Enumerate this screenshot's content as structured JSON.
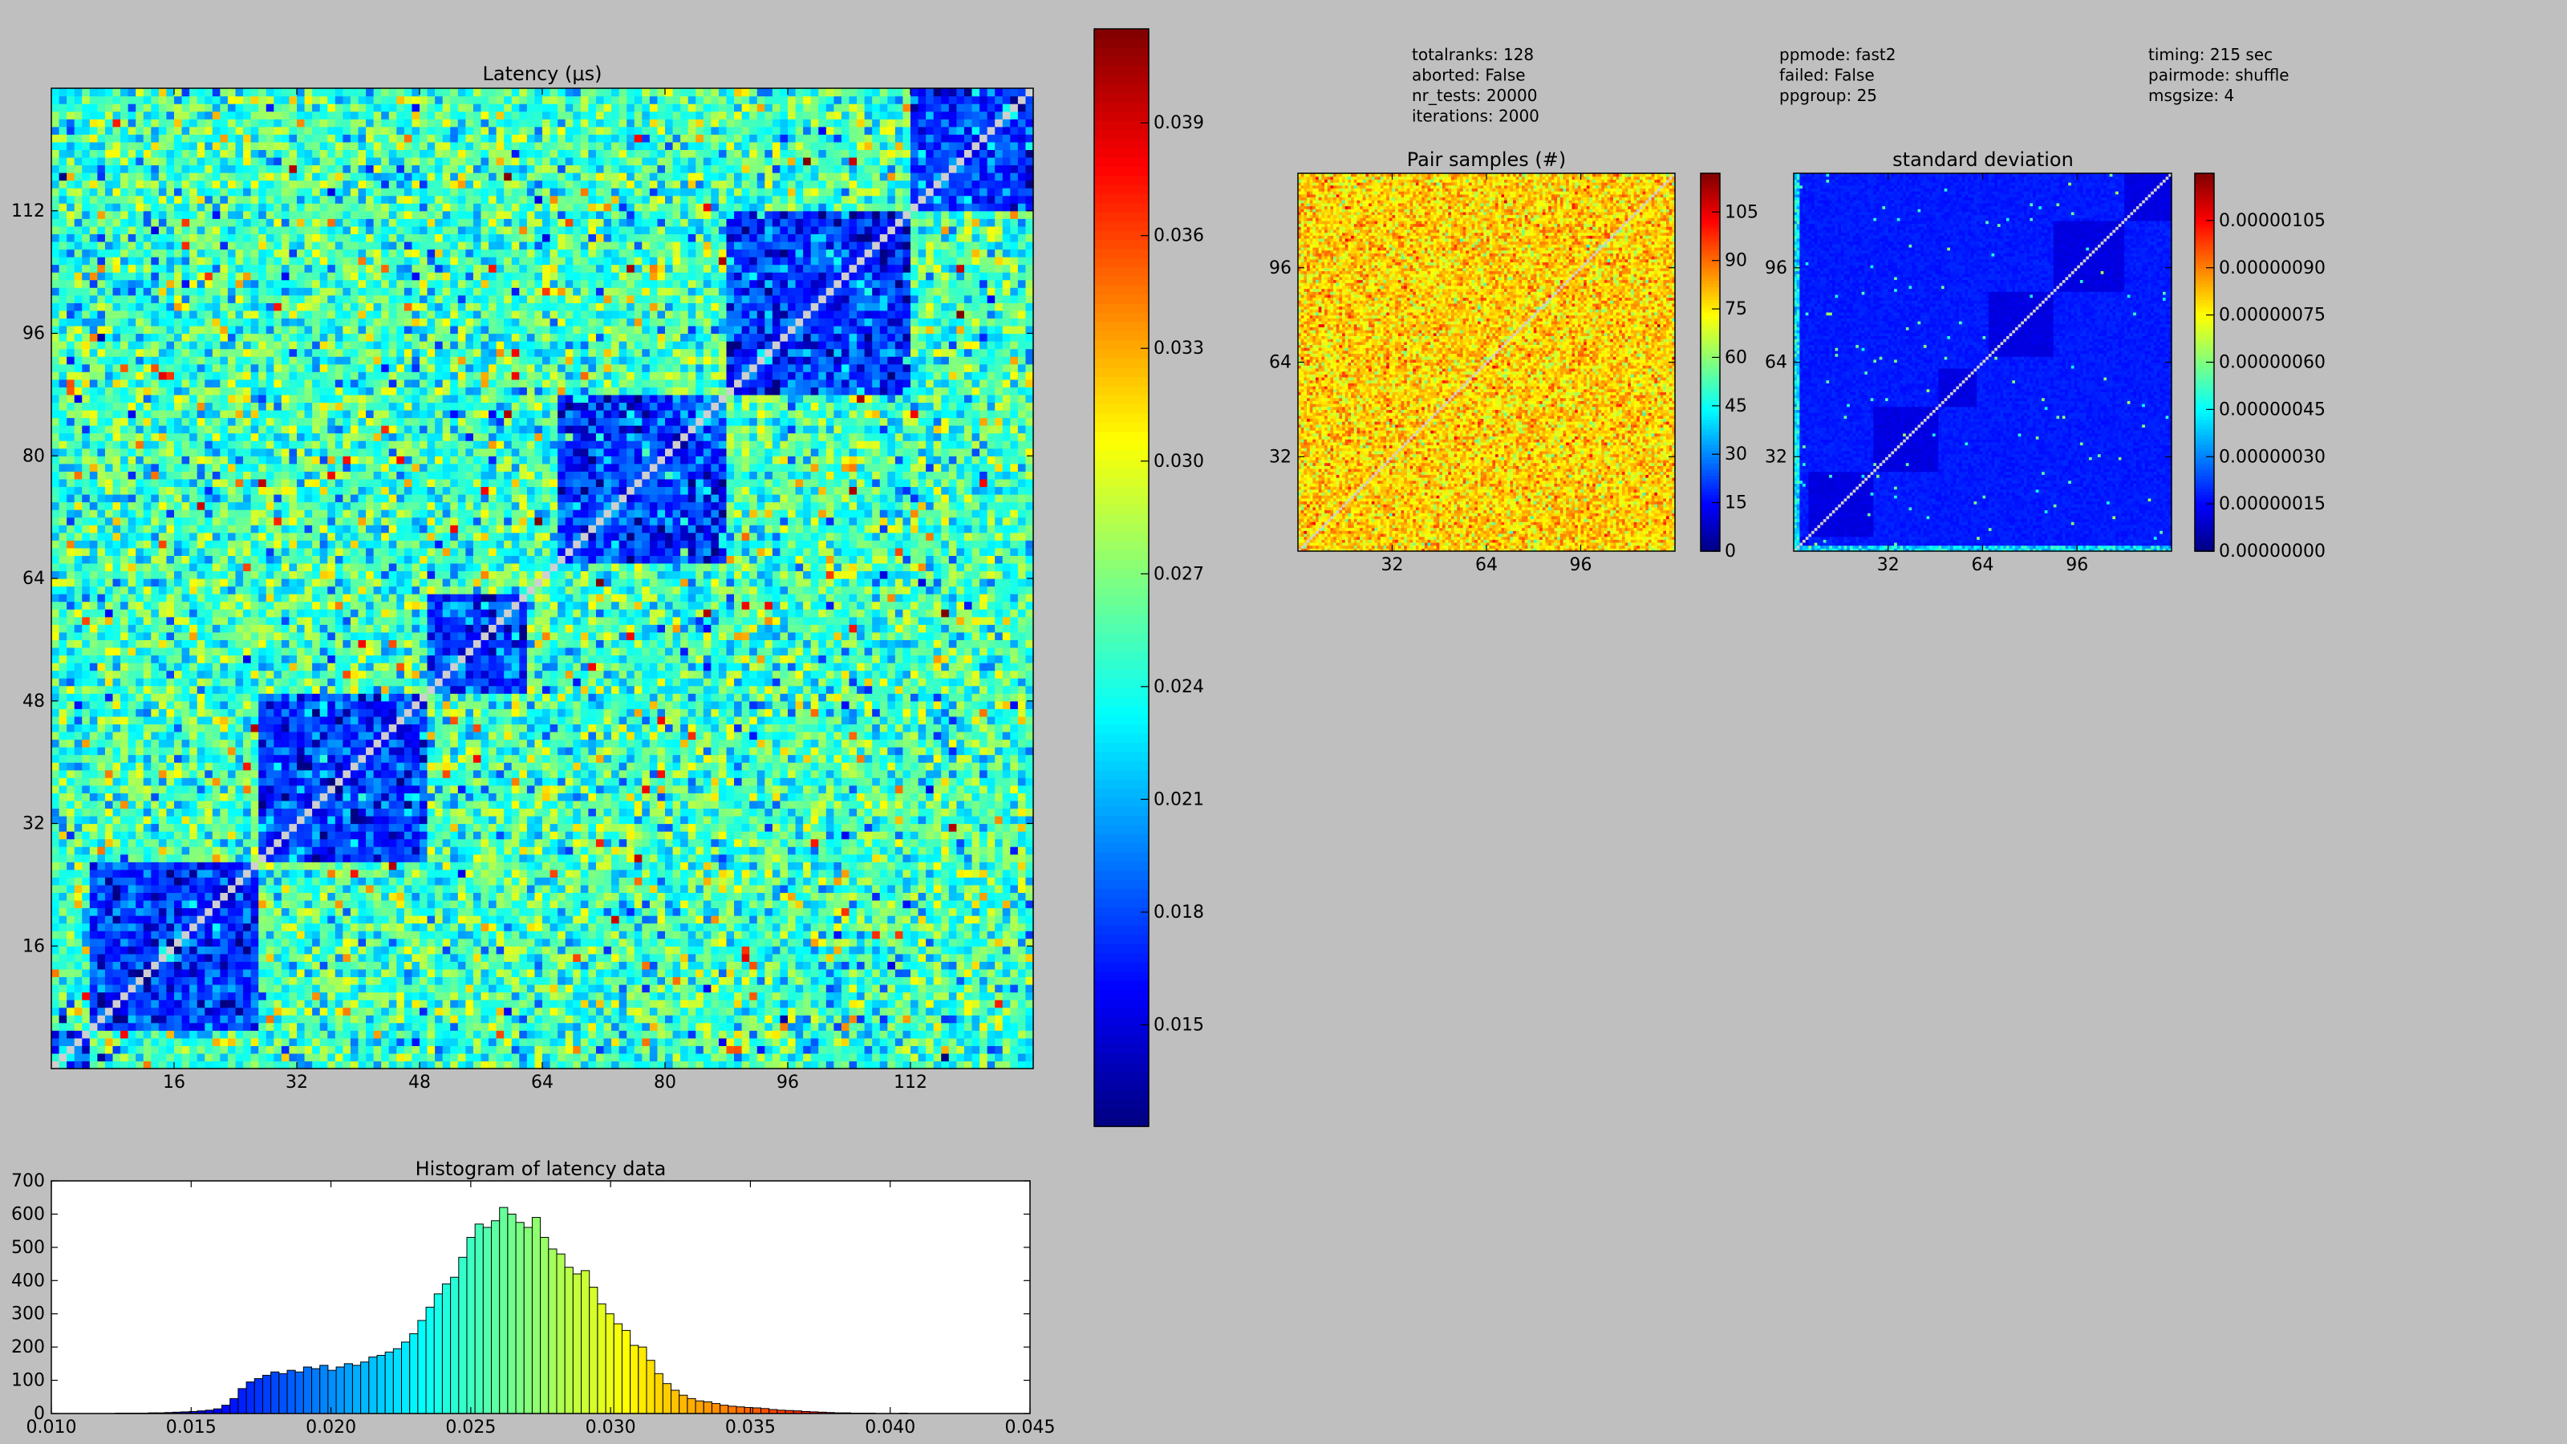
{
  "metadata": {
    "columns": [
      [
        "totalranks: 128",
        "aborted: False",
        "nr_tests: 20000",
        "iterations: 2000"
      ],
      [
        "ppmode: fast2",
        "failed: False",
        "ppgroup: 25"
      ],
      [
        "timing: 215 sec",
        "pairmode: shuffle",
        "msgsize: 4"
      ]
    ]
  },
  "colors": {
    "background": "#bfbfbf",
    "frame": "#000000",
    "diagonal": "#cfcfcf",
    "colormap": "jet",
    "histogram_background": "#ffffff"
  },
  "chart_data": [
    {
      "type": "heatmap",
      "id": "latency",
      "title": "Latency (μs)",
      "matrix_size": 128,
      "x_ticks": [
        "16",
        "32",
        "48",
        "64",
        "80",
        "96",
        "112"
      ],
      "y_ticks": [
        "16",
        "32",
        "48",
        "64",
        "80",
        "96",
        "112"
      ],
      "x_tick_values": [
        16,
        32,
        48,
        64,
        80,
        96,
        112
      ],
      "y_tick_values": [
        16,
        32,
        48,
        64,
        80,
        96,
        112
      ],
      "block_structure": [
        [
          0,
          5
        ],
        [
          5,
          27
        ],
        [
          27,
          49
        ],
        [
          49,
          62
        ],
        [
          66,
          88
        ],
        [
          88,
          112
        ],
        [
          112,
          128
        ]
      ],
      "value_in_block_mean": 0.0175,
      "value_in_block_spread": 0.0025,
      "value_off_block_mean": 0.025,
      "value_off_block_spread": 0.003,
      "colorbar": {
        "vmin": 0.0123,
        "vmax": 0.0415,
        "ticks": [
          "0.015",
          "0.018",
          "0.021",
          "0.024",
          "0.027",
          "0.030",
          "0.033",
          "0.036",
          "0.039"
        ],
        "tick_values": [
          0.015,
          0.018,
          0.021,
          0.024,
          0.027,
          0.03,
          0.033,
          0.036,
          0.039
        ]
      }
    },
    {
      "type": "heatmap",
      "id": "pair_samples",
      "title": "Pair samples (#)",
      "matrix_size": 128,
      "x_ticks": [
        "32",
        "64",
        "96"
      ],
      "y_ticks": [
        "32",
        "64",
        "96"
      ],
      "x_tick_values": [
        32,
        64,
        96
      ],
      "y_tick_values": [
        32,
        64,
        96
      ],
      "value_mean": 78,
      "value_spread": 8,
      "colorbar": {
        "vmin": 0,
        "vmax": 117,
        "ticks": [
          "0",
          "15",
          "30",
          "45",
          "60",
          "75",
          "90",
          "105"
        ],
        "tick_values": [
          0,
          15,
          30,
          45,
          60,
          75,
          90,
          105
        ]
      }
    },
    {
      "type": "heatmap",
      "id": "std_dev",
      "title": "standard deviation",
      "matrix_size": 128,
      "x_ticks": [
        "32",
        "64",
        "96"
      ],
      "y_ticks": [
        "32",
        "64",
        "96"
      ],
      "x_tick_values": [
        32,
        64,
        96
      ],
      "y_tick_values": [
        32,
        64,
        96
      ],
      "block_structure": [
        [
          0,
          5
        ],
        [
          5,
          27
        ],
        [
          27,
          49
        ],
        [
          49,
          62
        ],
        [
          66,
          88
        ],
        [
          88,
          112
        ],
        [
          112,
          128
        ]
      ],
      "colorbar": {
        "vmin": 0,
        "vmax": 1.2e-06,
        "ticks": [
          "0.00000000",
          "0.00000015",
          "0.00000030",
          "0.00000045",
          "0.00000060",
          "0.00000075",
          "0.00000090",
          "0.00000105"
        ],
        "tick_values": [
          0,
          1.5e-07,
          3e-07,
          4.5e-07,
          6e-07,
          7.5e-07,
          9e-07,
          1.05e-06
        ]
      }
    },
    {
      "type": "bar",
      "id": "histogram",
      "title": "Histogram of latency data",
      "xlim": [
        0.01,
        0.045
      ],
      "ylim": [
        0,
        700
      ],
      "x_ticks": [
        "0.010",
        "0.015",
        "0.020",
        "0.025",
        "0.030",
        "0.035",
        "0.040",
        "0.045"
      ],
      "x_tick_values": [
        0.01,
        0.015,
        0.02,
        0.025,
        0.03,
        0.035,
        0.04,
        0.045
      ],
      "y_ticks": [
        "0",
        "100",
        "200",
        "300",
        "400",
        "500",
        "600",
        "700"
      ],
      "y_tick_values": [
        0,
        100,
        200,
        300,
        400,
        500,
        600,
        700
      ],
      "bin_start": 0.0123,
      "bin_width": 0.0002921,
      "values": [
        1,
        1,
        1,
        1,
        2,
        2,
        3,
        4,
        5,
        6,
        8,
        10,
        14,
        25,
        45,
        75,
        95,
        105,
        115,
        125,
        120,
        130,
        125,
        140,
        135,
        145,
        130,
        140,
        150,
        145,
        155,
        170,
        175,
        185,
        195,
        215,
        240,
        280,
        320,
        360,
        390,
        410,
        470,
        530,
        570,
        560,
        580,
        620,
        600,
        575,
        560,
        590,
        530,
        495,
        480,
        440,
        420,
        430,
        380,
        330,
        300,
        270,
        250,
        205,
        200,
        160,
        120,
        90,
        70,
        55,
        45,
        38,
        35,
        30,
        25,
        22,
        20,
        18,
        17,
        15,
        12,
        10,
        9,
        8,
        6,
        5,
        4,
        3,
        2,
        2,
        1,
        1,
        1,
        0,
        0,
        0,
        1,
        0,
        0,
        0
      ]
    }
  ]
}
